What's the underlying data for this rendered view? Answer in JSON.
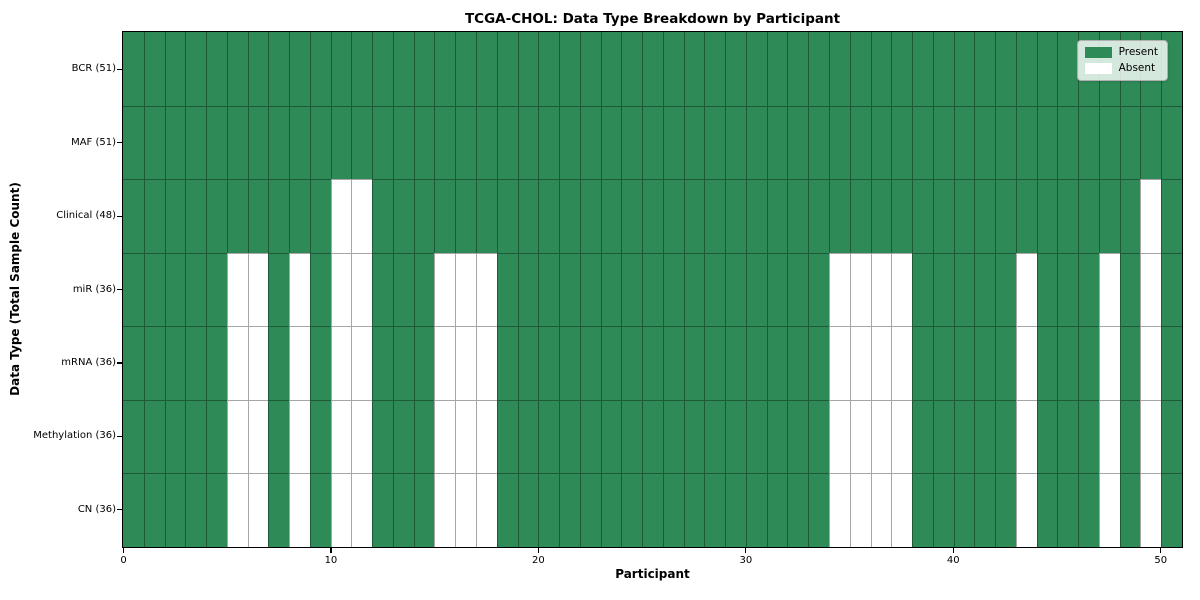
{
  "chart_data": {
    "type": "heatmap",
    "title": "TCGA-CHOL: Data Type Breakdown by Participant",
    "xlabel": "Participant",
    "ylabel": "Data Type (Total Sample Count)",
    "n_participants": 51,
    "x_ticks": [
      0,
      10,
      20,
      30,
      40,
      50
    ],
    "x_range": [
      0,
      51
    ],
    "grid": true,
    "colors": {
      "present": "#2e8b57",
      "absent": "#ffffff",
      "gridline": "rgba(0,0,0,0.35)"
    },
    "legend": {
      "position": "upper right",
      "entries": [
        {
          "label": "Present",
          "color": "#2e8b57"
        },
        {
          "label": "Absent",
          "color": "#ffffff"
        }
      ]
    },
    "rows": [
      {
        "name": "BCR",
        "label": "BCR (51)",
        "total": 51,
        "absent_participants": []
      },
      {
        "name": "MAF",
        "label": "MAF (51)",
        "total": 51,
        "absent_participants": []
      },
      {
        "name": "Clinical",
        "label": "Clinical (48)",
        "total": 48,
        "absent_participants": [
          10,
          11,
          49
        ]
      },
      {
        "name": "miR",
        "label": "miR (36)",
        "total": 36,
        "absent_participants": [
          5,
          6,
          8,
          10,
          11,
          15,
          16,
          17,
          34,
          35,
          36,
          37,
          43,
          47,
          49
        ]
      },
      {
        "name": "mRNA",
        "label": "mRNA (36)",
        "total": 36,
        "absent_participants": [
          5,
          6,
          8,
          10,
          11,
          15,
          16,
          17,
          34,
          35,
          36,
          37,
          43,
          47,
          49
        ]
      },
      {
        "name": "Methylation",
        "label": "Methylation (36)",
        "total": 36,
        "absent_participants": [
          5,
          6,
          8,
          10,
          11,
          15,
          16,
          17,
          34,
          35,
          36,
          37,
          43,
          47,
          49
        ]
      },
      {
        "name": "CN",
        "label": "CN (36)",
        "total": 36,
        "absent_participants": [
          5,
          6,
          8,
          10,
          11,
          15,
          16,
          17,
          34,
          35,
          36,
          37,
          43,
          47,
          49
        ]
      }
    ]
  }
}
